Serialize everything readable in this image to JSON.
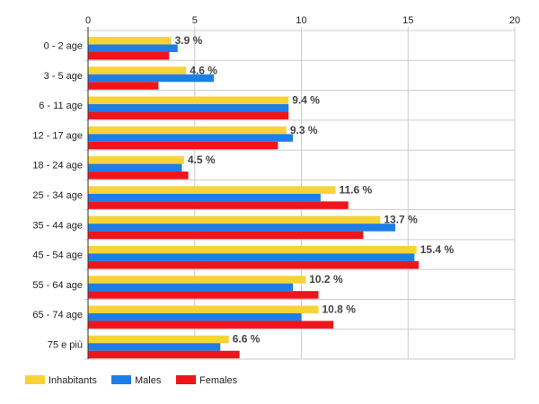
{
  "chart_data": {
    "type": "bar",
    "orientation": "horizontal",
    "categories": [
      "0 - 2 age",
      "3 - 5 age",
      "6 - 11 age",
      "12 - 17 age",
      "18 - 24 age",
      "25 - 34 age",
      "35 - 44 age",
      "45 - 54 age",
      "55 - 64 age",
      "65 - 74 age",
      "75 e più"
    ],
    "series": [
      {
        "name": "Inhabitants",
        "color": "#f7d337",
        "values": [
          3.9,
          4.6,
          9.4,
          9.3,
          4.5,
          11.6,
          13.7,
          15.4,
          10.2,
          10.8,
          6.6
        ]
      },
      {
        "name": "Males",
        "color": "#1e7ee8",
        "values": [
          4.2,
          5.9,
          9.4,
          9.6,
          4.4,
          10.9,
          14.4,
          15.3,
          9.6,
          10.0,
          6.2
        ]
      },
      {
        "name": "Females",
        "color": "#f0141b",
        "values": [
          3.8,
          3.3,
          9.4,
          8.9,
          4.7,
          12.2,
          12.9,
          15.5,
          10.8,
          11.5,
          7.1
        ]
      }
    ],
    "data_labels": [
      "3.9 %",
      "4.6 %",
      "9.4 %",
      "9.3 %",
      "4.5 %",
      "11.6 %",
      "13.7 %",
      "15.4 %",
      "10.2 %",
      "10.8 %",
      "6.6 %"
    ],
    "x_ticks": [
      0,
      5,
      10,
      15,
      20
    ],
    "xlim": [
      0,
      20
    ],
    "grid": true,
    "axis_position": "top",
    "legend_position": "bottom-left",
    "title": "",
    "xlabel": "",
    "ylabel": ""
  }
}
